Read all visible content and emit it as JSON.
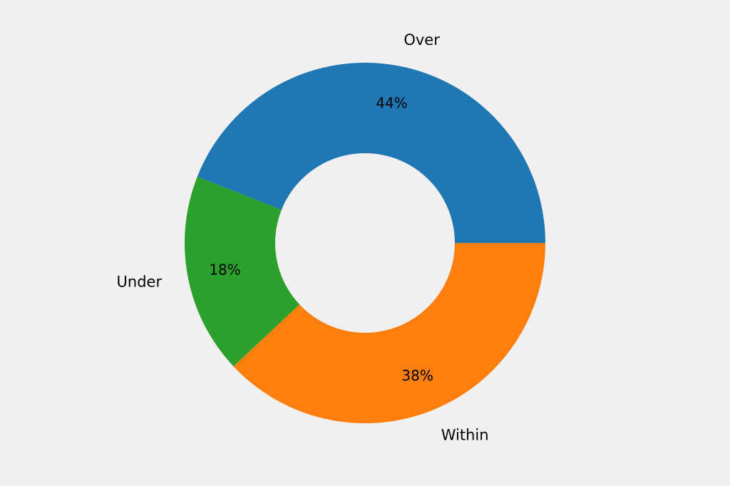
{
  "chart_data": {
    "type": "pie",
    "donut": true,
    "title": "",
    "categories": [
      "Over",
      "Under",
      "Within"
    ],
    "values": [
      44,
      18,
      38
    ],
    "value_labels": [
      "44%",
      "18%",
      "38%"
    ],
    "colors": [
      "#1f77b4",
      "#2ca02c",
      "#ff7f0e"
    ],
    "start_angle": "0 degrees (3 o'clock), counterclockwise",
    "legend": "none",
    "background": "#f0f0f0"
  }
}
